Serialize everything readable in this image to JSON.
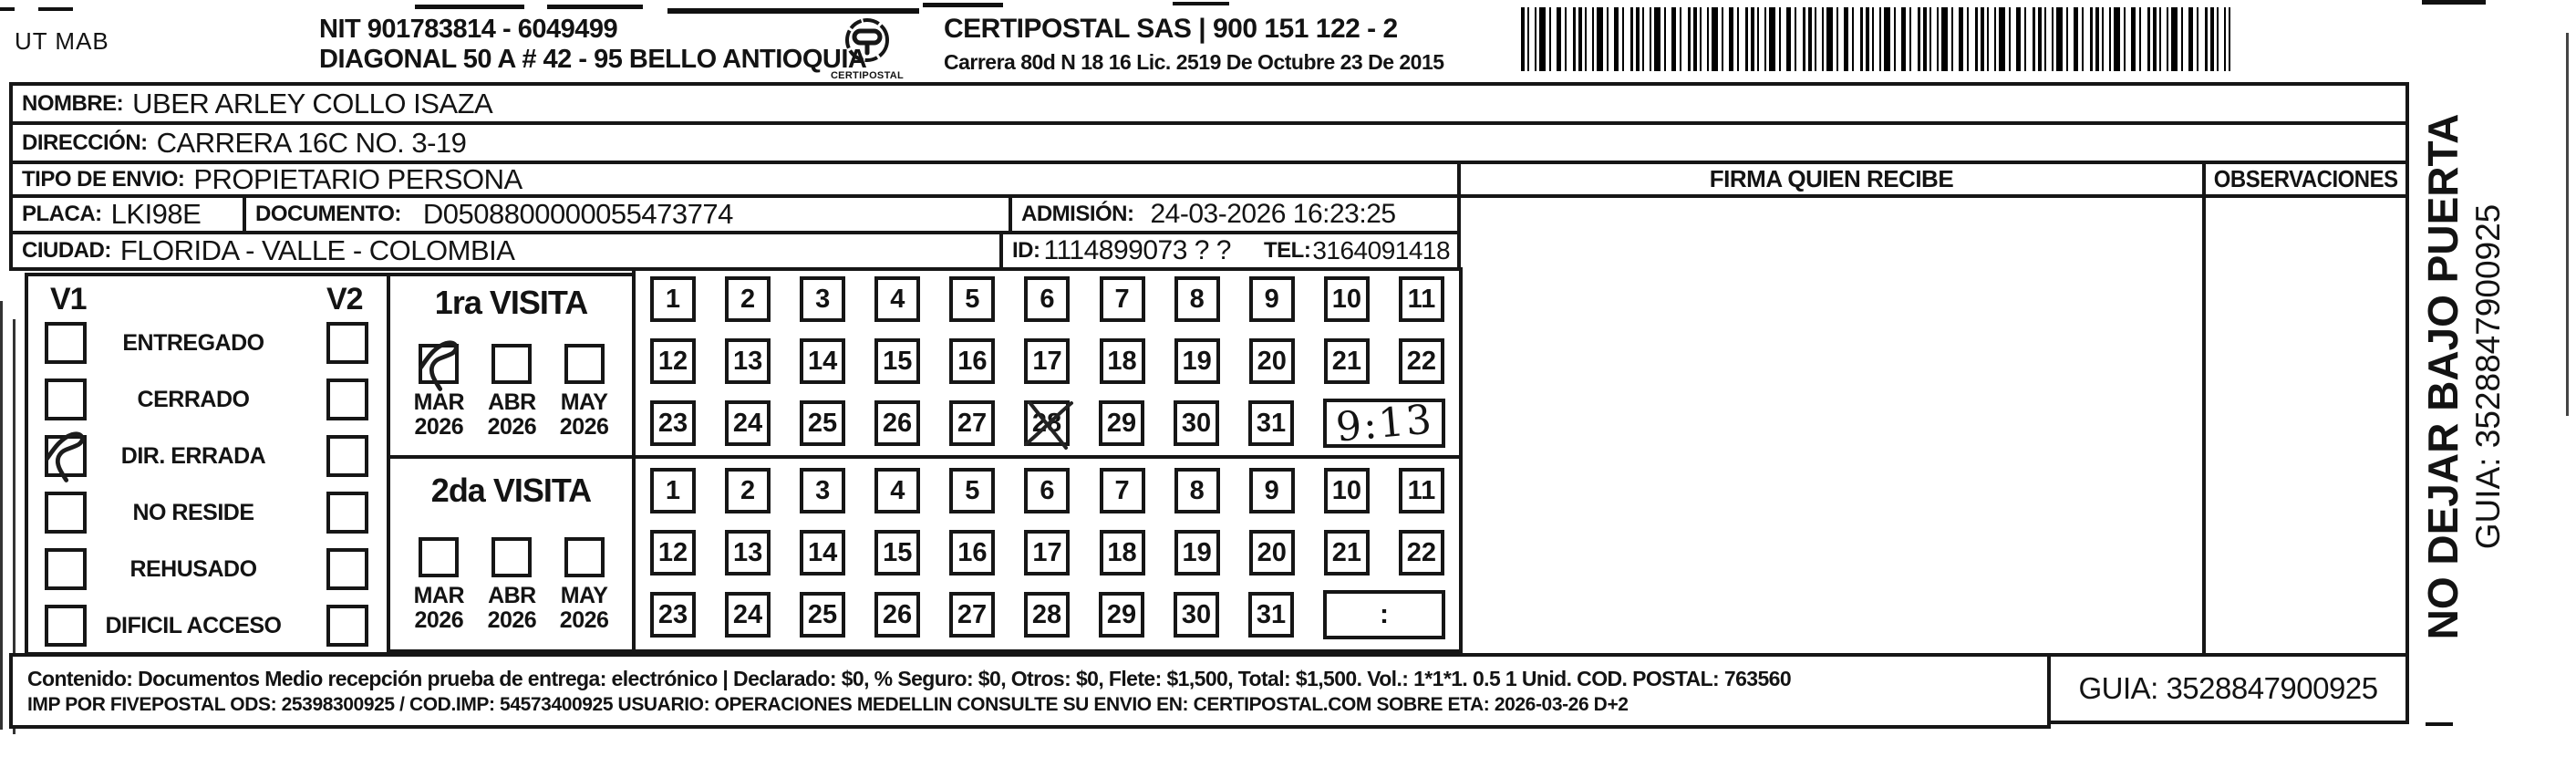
{
  "header": {
    "ut_mab": "UT MAB",
    "nit_line": "NIT 901783814 - 6049499",
    "address_line": "DIAGONAL 50 A # 42 - 95  BELLO  ANTIOQUIA",
    "company_line": "CERTIPOSTAL SAS | 900 151 122 - 2",
    "license_line": "Carrera 80d N 18 16  Lic. 2519 De Octubre 23 De 2015",
    "logo_text": "CERTIPOSTAL"
  },
  "fields": {
    "nombre_label": "NOMBRE:",
    "nombre": "UBER ARLEY COLLO ISAZA",
    "direccion_label": "DIRECCIÓN:",
    "direccion": "CARRERA 16C NO. 3-19",
    "tipo_label": "TIPO DE ENVIO:",
    "tipo": "PROPIETARIO PERSONA",
    "placa_label": "PLACA:",
    "placa": "LKI98E",
    "documento_label": "DOCUMENTO:",
    "documento": "D0508800000055473774",
    "admision_label": "ADMISIÓN:",
    "admision": "24-03-2026 16:23:25",
    "ciudad_label": "CIUDAD:",
    "ciudad": "FLORIDA - VALLE - COLOMBIA",
    "id_label": "ID:",
    "id": "1114899073 ? ?",
    "tel_label": "TEL:",
    "tel": "3164091418"
  },
  "columns": {
    "firma": "FIRMA QUIEN RECIBE",
    "observaciones": "OBSERVACIONES"
  },
  "status": {
    "v1": "V1",
    "v2": "V2",
    "options": [
      "ENTREGADO",
      "CERRADO",
      "DIR. ERRADA",
      "NO RESIDE",
      "REHUSADO",
      "DIFICIL ACCESO"
    ],
    "v1_checked": "DIR. ERRADA"
  },
  "visits": {
    "first": {
      "title": "1ra VISITA",
      "months": [
        "MAR",
        "ABR",
        "MAY"
      ],
      "years": [
        "2026",
        "2026",
        "2026"
      ],
      "checked_month": "MAR",
      "days": [
        "1",
        "2",
        "3",
        "4",
        "5",
        "6",
        "7",
        "8",
        "9",
        "10",
        "11",
        "12",
        "13",
        "14",
        "15",
        "16",
        "17",
        "18",
        "19",
        "20",
        "21",
        "22",
        "23",
        "24",
        "25",
        "26",
        "27",
        "28",
        "29",
        "30",
        "31"
      ],
      "crossed_day": "28",
      "time": "9:13"
    },
    "second": {
      "title": "2da VISITA",
      "months": [
        "MAR",
        "ABR",
        "MAY"
      ],
      "years": [
        "2026",
        "2026",
        "2026"
      ],
      "checked_month": "",
      "days": [
        "1",
        "2",
        "3",
        "4",
        "5",
        "6",
        "7",
        "8",
        "9",
        "10",
        "11",
        "12",
        "13",
        "14",
        "15",
        "16",
        "17",
        "18",
        "19",
        "20",
        "21",
        "22",
        "23",
        "24",
        "25",
        "26",
        "27",
        "28",
        "29",
        "30",
        "31"
      ],
      "crossed_day": "",
      "time": ":"
    }
  },
  "footer": {
    "line1": "Contenido: Documentos Medio recepción prueba de entrega: electrónico | Declarado: $0, % Seguro: $0, Otros: $0, Flete: $1,500, Total: $1,500. Vol.: 1*1*1. 0.5  1 Unid. COD. POSTAL: 763560",
    "line2": "IMP POR FIVEPOSTAL ODS: 25398300925 / COD.IMP: 54573400925 USUARIO: OPERACIONES MEDELLIN CONSULTE SU ENVIO EN: CERTIPOSTAL.COM SOBRE ETA: 2026-03-26 D+2",
    "guia": "GUIA: 3528847900925"
  },
  "side": {
    "line1": "NO DEJAR BAJO PUERTA",
    "line2": "GUIA: 3528847900925"
  }
}
